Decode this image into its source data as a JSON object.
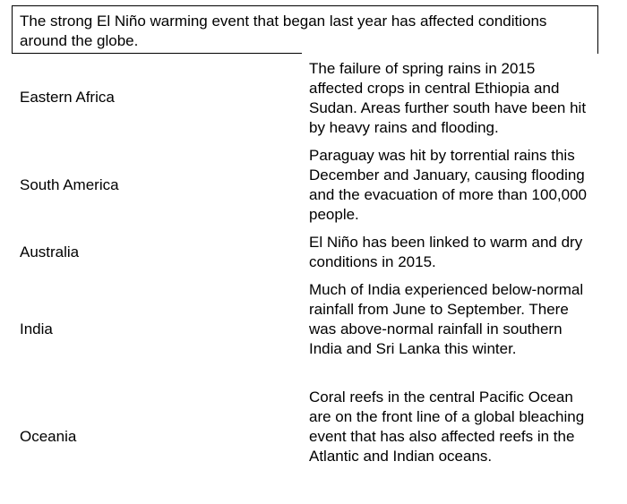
{
  "intro": "The strong El Niño warming event that began last year has affected conditions around the globe.",
  "rows": [
    {
      "region": "Eastern Africa",
      "text": "The failure of spring rains in 2015 affected crops in central Ethiopia and Sudan. Areas further south have been hit by heavy rains and flooding."
    },
    {
      "region": "South America",
      "text": "Paraguay was hit by torrential rains this December and January, causing flooding and the evacuation of more than 100,000 people."
    },
    {
      "region": "Australia",
      "text": "El Niño has been linked to warm and dry conditions in 2015."
    },
    {
      "region": "India",
      "text": "Much of India experienced below-normal rainfall from June to September. There was above-normal rainfall in southern India and Sri Lanka this winter."
    },
    {
      "region": "Oceania",
      "text": "Coral reefs in the central Pacific Ocean are on the front line of a global bleaching event that has also affected reefs in the Atlantic and Indian oceans."
    }
  ]
}
